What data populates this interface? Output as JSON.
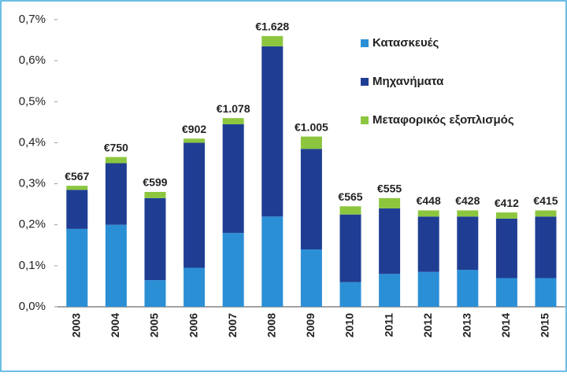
{
  "chart_data": {
    "type": "stacked_bar",
    "categories": [
      "2003",
      "2004",
      "2005",
      "2006",
      "2007",
      "2008",
      "2009",
      "2010",
      "2011",
      "2012",
      "2013",
      "2014",
      "2015"
    ],
    "series": [
      {
        "name": "Κατασκευές",
        "color": "#2b8fd6",
        "values": [
          0.19,
          0.2,
          0.065,
          0.095,
          0.18,
          0.22,
          0.14,
          0.06,
          0.08,
          0.085,
          0.09,
          0.07,
          0.07
        ]
      },
      {
        "name": "Μηχανήματα",
        "color": "#1f3e93",
        "values": [
          0.095,
          0.15,
          0.2,
          0.305,
          0.265,
          0.415,
          0.245,
          0.165,
          0.16,
          0.135,
          0.13,
          0.145,
          0.15
        ]
      },
      {
        "name": "Μεταφορικός εξοπλισμός",
        "color": "#8cc63f",
        "values": [
          0.01,
          0.015,
          0.015,
          0.01,
          0.015,
          0.025,
          0.03,
          0.02,
          0.025,
          0.015,
          0.015,
          0.015,
          0.015
        ]
      }
    ],
    "annotations": [
      "€567",
      "€750",
      "€599",
      "€902",
      "€1.078",
      "€1.628",
      "€1.005",
      "€565",
      "€555",
      "€448",
      "€428",
      "€412",
      "€415"
    ],
    "ylim": [
      0,
      0.7
    ],
    "yticks": [
      {
        "value": 0,
        "label": "0,0%"
      },
      {
        "value": 0.1,
        "label": "0,1%"
      },
      {
        "value": 0.2,
        "label": "0,2%"
      },
      {
        "value": 0.3,
        "label": "0,3%"
      },
      {
        "value": 0.4,
        "label": "0,4%"
      },
      {
        "value": 0.5,
        "label": "0,5%"
      },
      {
        "value": 0.6,
        "label": "0,6%"
      },
      {
        "value": 0.7,
        "label": "0,7%"
      }
    ],
    "grid": false,
    "legend": "top-right"
  }
}
